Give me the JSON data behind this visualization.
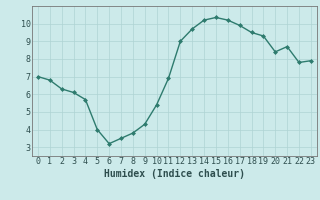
{
  "x": [
    0,
    1,
    2,
    3,
    4,
    5,
    6,
    7,
    8,
    9,
    10,
    11,
    12,
    13,
    14,
    15,
    16,
    17,
    18,
    19,
    20,
    21,
    22,
    23
  ],
  "y": [
    7.0,
    6.8,
    6.3,
    6.1,
    5.7,
    4.0,
    3.2,
    3.5,
    3.8,
    4.3,
    5.4,
    6.9,
    9.0,
    9.7,
    10.2,
    10.35,
    10.2,
    9.9,
    9.5,
    9.3,
    8.4,
    8.7,
    7.8,
    7.9
  ],
  "xlabel": "Humidex (Indice chaleur)",
  "ylim": [
    2.5,
    11.0
  ],
  "xlim": [
    -0.5,
    23.5
  ],
  "yticks": [
    3,
    4,
    5,
    6,
    7,
    8,
    9,
    10
  ],
  "xticks": [
    0,
    1,
    2,
    3,
    4,
    5,
    6,
    7,
    8,
    9,
    10,
    11,
    12,
    13,
    14,
    15,
    16,
    17,
    18,
    19,
    20,
    21,
    22,
    23
  ],
  "line_color": "#2e7b6e",
  "marker_color": "#2e7b6e",
  "bg_color": "#cceaea",
  "grid_color": "#afd4d4",
  "font_color": "#2e4e4e",
  "tick_font_size": 6.0,
  "xlabel_font_size": 7.0
}
